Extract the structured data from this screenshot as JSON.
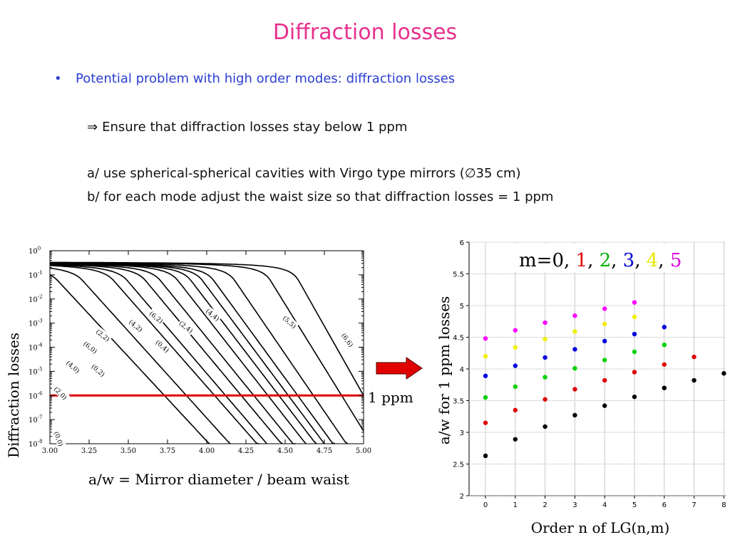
{
  "slide": {
    "title": "Diffraction losses",
    "bullet": "Potential problem with high order modes: diffraction losses",
    "implies_symbol": "⇒",
    "line1": "Ensure that diffraction losses stay below 1 ppm",
    "line2": "a/ use spherical-spherical cavities with Virgo type mirrors (∅35 cm)",
    "line3": "b/ for each mode adjust the waist size so that diffraction losses = 1 ppm",
    "arrow_color": "#e00000"
  },
  "chart_data": [
    {
      "type": "line",
      "ylabel": "Diffraction losses",
      "xlabel": "a/w = Mirror diameter / beam waist",
      "y_scale": "log",
      "xlim": [
        3.0,
        5.0
      ],
      "ylim_exp": [
        -8,
        0
      ],
      "x_ticks": [
        "3.00",
        "3.25",
        "3.50",
        "3.75",
        "4.00",
        "4.25",
        "4.50",
        "4.75",
        "5.00"
      ],
      "y_tick_base": "10",
      "y_tick_exps": [
        "0",
        "-1",
        "-2",
        "-3",
        "-4",
        "-5",
        "-6",
        "-7",
        "-8"
      ],
      "reference_line": {
        "y_exp": -6,
        "label": "1 ppm",
        "color": "#e00000"
      },
      "curves": [
        {
          "label": "(0,0)",
          "x_at_ppm": 3.73,
          "slope": 7.0
        },
        {
          "label": "(2,0)",
          "x_at_ppm": 3.87,
          "slope": 7.2
        },
        {
          "label": "(4,0)",
          "x_at_ppm": 4.05,
          "slope": 7.4
        },
        {
          "label": "(0,2)",
          "x_at_ppm": 4.12,
          "slope": 7.6
        },
        {
          "label": "(6,0)",
          "x_at_ppm": 4.22,
          "slope": 7.8
        },
        {
          "label": "(2,2)",
          "x_at_ppm": 4.3,
          "slope": 8.0
        },
        {
          "label": "(0,4)",
          "x_at_ppm": 4.39,
          "slope": 8.3
        },
        {
          "label": "(4,2)",
          "x_at_ppm": 4.46,
          "slope": 8.5
        },
        {
          "label": "(2,4)",
          "x_at_ppm": 4.52,
          "slope": 8.7
        },
        {
          "label": "(6,2)",
          "x_at_ppm": 4.58,
          "slope": 8.9
        },
        {
          "label": "(4,4)",
          "x_at_ppm": 4.68,
          "slope": 9.5
        },
        {
          "label": "(5,5)",
          "x_at_ppm": 4.86,
          "slope": 10.5
        },
        {
          "label": "(6,6)",
          "x_at_ppm": 5.0,
          "slope": 11.5
        }
      ]
    },
    {
      "type": "scatter",
      "ylabel": "a/w for 1 ppm losses",
      "xlabel": "Order n of LG(n,m)",
      "xlim": [
        -0.3,
        8
      ],
      "ylim": [
        2,
        6
      ],
      "x_ticks": [
        "0",
        "1",
        "2",
        "3",
        "4",
        "5",
        "6",
        "7",
        "8"
      ],
      "y_ticks": [
        "2",
        "2.5",
        "3",
        "3.5",
        "4",
        "4.5",
        "5",
        "5.5",
        "6"
      ],
      "legend_prefix": "m=0,",
      "legend": [
        {
          "text": "1",
          "color": "#e00000"
        },
        {
          "text": "2",
          "color": "#00b000"
        },
        {
          "text": "3",
          "color": "#0000d0"
        },
        {
          "text": "4",
          "color": "#e8e800"
        },
        {
          "text": "5",
          "color": "#e000e0"
        }
      ],
      "series": [
        {
          "m": 0,
          "color": "#000000",
          "x": [
            0,
            1,
            2,
            3,
            4,
            5,
            6,
            7,
            8
          ],
          "y": [
            2.63,
            2.89,
            3.09,
            3.27,
            3.42,
            3.56,
            3.7,
            3.82,
            3.93
          ]
        },
        {
          "m": 1,
          "color": "#e00000",
          "x": [
            0,
            1,
            2,
            3,
            4,
            5,
            6,
            7
          ],
          "y": [
            3.15,
            3.35,
            3.52,
            3.68,
            3.82,
            3.95,
            4.07,
            4.19
          ]
        },
        {
          "m": 2,
          "color": "#00d000",
          "x": [
            0,
            1,
            2,
            3,
            4,
            5,
            6
          ],
          "y": [
            3.55,
            3.72,
            3.87,
            4.01,
            4.14,
            4.27,
            4.38
          ]
        },
        {
          "m": 3,
          "color": "#0000e0",
          "x": [
            0,
            1,
            2,
            3,
            4,
            5,
            6
          ],
          "y": [
            3.89,
            4.05,
            4.18,
            4.31,
            4.44,
            4.55,
            4.66
          ]
        },
        {
          "m": 4,
          "color": "#f0f000",
          "x": [
            0,
            1,
            2,
            3,
            4,
            5
          ],
          "y": [
            4.2,
            4.34,
            4.47,
            4.59,
            4.71,
            4.82
          ]
        },
        {
          "m": 5,
          "color": "#ff00ff",
          "x": [
            0,
            1,
            2,
            3,
            4,
            5
          ],
          "y": [
            4.48,
            4.61,
            4.73,
            4.84,
            4.95,
            5.05
          ]
        }
      ]
    }
  ]
}
